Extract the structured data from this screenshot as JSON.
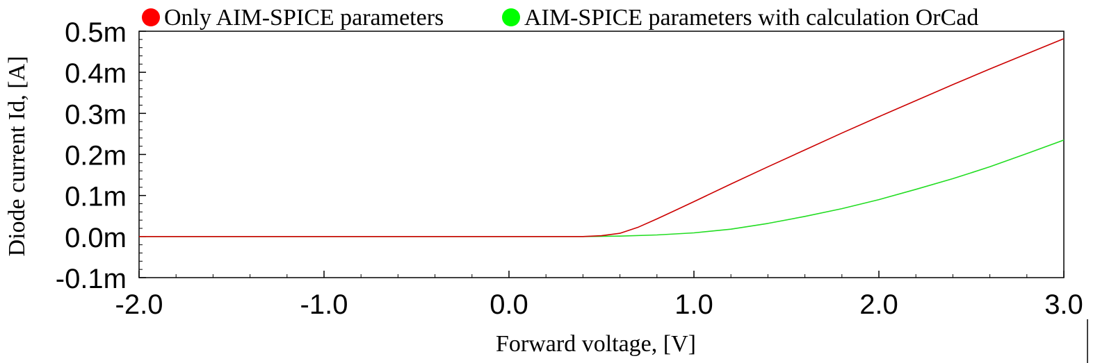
{
  "chart_data": {
    "type": "line",
    "title": "",
    "xlabel": "Forward voltage,  [V]",
    "ylabel": "Diode current Id,  [A]",
    "xlim": [
      -2.0,
      3.0
    ],
    "ylim": [
      -0.0001,
      0.0005
    ],
    "x_ticks": [
      -2.0,
      -1.0,
      0.0,
      1.0,
      2.0,
      3.0
    ],
    "x_tick_labels": [
      "-2.0",
      "-1.0",
      "0.0",
      "1.0",
      "2.0",
      "3.0"
    ],
    "y_ticks": [
      -0.0001,
      0.0,
      0.0001,
      0.0002,
      0.0003,
      0.0004,
      0.0005
    ],
    "y_tick_labels": [
      "-0.1m",
      "0.0m",
      "0.1m",
      "0.2m",
      "0.3m",
      "0.4m",
      "0.5m"
    ],
    "grid": false,
    "legend_position": "top",
    "series": [
      {
        "name": "Only AIM-SPICE parameters",
        "color": "#cc0000",
        "legend_color": "#ff0000",
        "x": [
          -2.0,
          0.3,
          0.4,
          0.5,
          0.6,
          0.7,
          0.8,
          0.9,
          1.0,
          1.2,
          1.4,
          1.6,
          1.8,
          2.0,
          2.2,
          2.4,
          2.6,
          2.8,
          3.0
        ],
        "y": [
          0.0,
          0.0,
          0.0,
          2e-06,
          8e-06,
          2.3e-05,
          4.3e-05,
          6.4e-05,
          8.5e-05,
          0.000128,
          0.00017,
          0.000211,
          0.000252,
          0.000292,
          0.000331,
          0.00037,
          0.000408,
          0.000445,
          0.000482
        ]
      },
      {
        "name": "AIM-SPICE parameters with calculation OrCad",
        "color": "#22dd22",
        "legend_color": "#00ff00",
        "x": [
          -2.0,
          0.0,
          0.4,
          0.6,
          0.8,
          1.0,
          1.2,
          1.4,
          1.6,
          1.8,
          2.0,
          2.2,
          2.4,
          2.6,
          2.8,
          3.0
        ],
        "y": [
          0.0,
          0.0,
          0.0,
          1e-06,
          4e-06,
          9e-06,
          1.8e-05,
          3.2e-05,
          4.9e-05,
          6.8e-05,
          9e-05,
          0.000115,
          0.000141,
          0.00017,
          0.000202,
          0.000235
        ]
      }
    ]
  }
}
